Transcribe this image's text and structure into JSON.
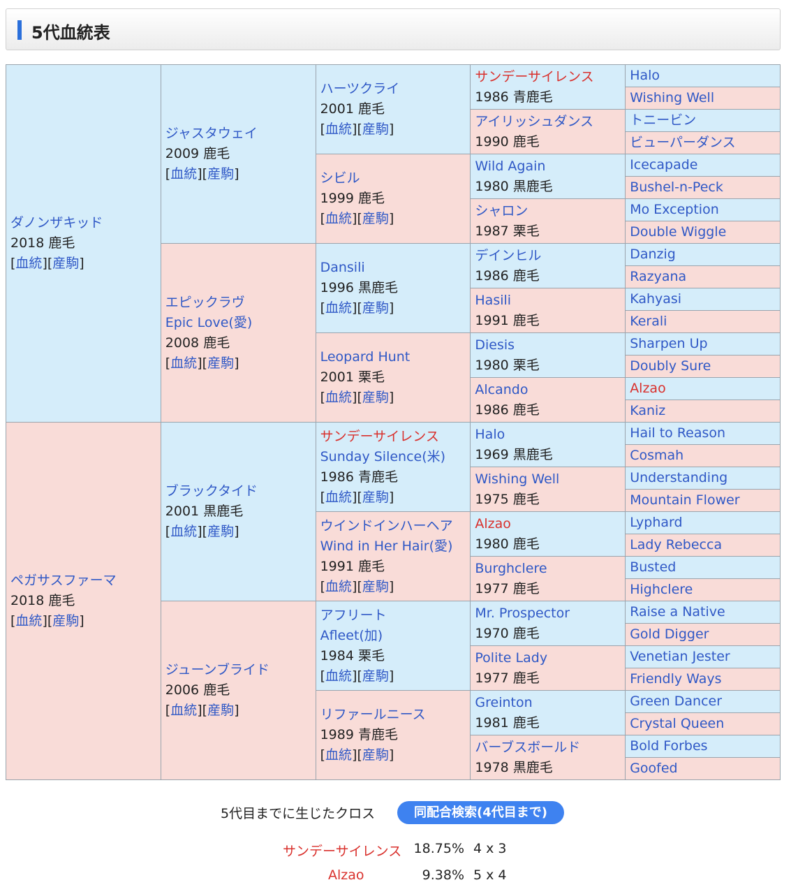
{
  "header": {
    "title": "5代血統表"
  },
  "links": {
    "pedigree": "血統",
    "progeny": "産駒"
  },
  "gen1": [
    {
      "name": "ダノンザキッド",
      "info": "2018 鹿毛"
    },
    {
      "name": "ペガサスファーマ",
      "info": "2018 鹿毛"
    }
  ],
  "gen2": [
    {
      "name": "ジャスタウェイ",
      "info": "2009 鹿毛"
    },
    {
      "name": "エピックラヴ",
      "alt": "Epic Love(愛)",
      "info": "2008 鹿毛"
    },
    {
      "name": "ブラックタイド",
      "info": "2001 黒鹿毛"
    },
    {
      "name": "ジューンブライド",
      "info": "2006 鹿毛"
    }
  ],
  "gen3": [
    {
      "name": "ハーツクライ",
      "info": "2001 鹿毛"
    },
    {
      "name": "シビル",
      "info": "1999 鹿毛"
    },
    {
      "name": "Dansili",
      "info": "1996 黒鹿毛"
    },
    {
      "name": "Leopard Hunt",
      "info": "2001 栗毛"
    },
    {
      "name": "サンデーサイレンス",
      "alt": "Sunday Silence(米)",
      "info": "1986 青鹿毛"
    },
    {
      "name": "ウインドインハーヘア",
      "alt": "Wind in Her Hair(愛)",
      "info": "1991 鹿毛"
    },
    {
      "name": "アフリート",
      "alt": "Afleet(加)",
      "info": "1984 栗毛"
    },
    {
      "name": "リファールニース",
      "info": "1989 青鹿毛"
    }
  ],
  "gen4": [
    {
      "name": "サンデーサイレンス",
      "info": "1986 青鹿毛"
    },
    {
      "name": "アイリッシュダンス",
      "info": "1990 鹿毛"
    },
    {
      "name": "Wild Again",
      "info": "1980 黒鹿毛"
    },
    {
      "name": "シャロン",
      "info": "1987 栗毛"
    },
    {
      "name": "デインヒル",
      "info": "1986 鹿毛"
    },
    {
      "name": "Hasili",
      "info": "1991 鹿毛"
    },
    {
      "name": "Diesis",
      "info": "1980 栗毛"
    },
    {
      "name": "Alcando",
      "info": "1986 鹿毛"
    },
    {
      "name": "Halo",
      "info": "1969 黒鹿毛"
    },
    {
      "name": "Wishing Well",
      "info": "1975 鹿毛"
    },
    {
      "name": "Alzao",
      "info": "1980 鹿毛"
    },
    {
      "name": "Burghclere",
      "info": "1977 鹿毛"
    },
    {
      "name": "Mr. Prospector",
      "info": "1970 鹿毛"
    },
    {
      "name": "Polite Lady",
      "info": "1977 鹿毛"
    },
    {
      "name": "Greinton",
      "info": "1981 鹿毛"
    },
    {
      "name": "バーブスボールド",
      "info": "1978 黒鹿毛"
    }
  ],
  "gen5": [
    "Halo",
    "Wishing Well",
    "トニービン",
    "ビューパーダンス",
    "Icecapade",
    "Bushel-n-Peck",
    "Mo Exception",
    "Double Wiggle",
    "Danzig",
    "Razyana",
    "Kahyasi",
    "Kerali",
    "Sharpen Up",
    "Doubly Sure",
    "Alzao",
    "Kaniz",
    "Hail to Reason",
    "Cosmah",
    "Understanding",
    "Mountain Flower",
    "Lyphard",
    "Lady Rebecca",
    "Busted",
    "Highclere",
    "Raise a Native",
    "Gold Digger",
    "Venetian Jester",
    "Friendly Ways",
    "Green Dancer",
    "Crystal Queen",
    "Bold Forbes",
    "Goofed"
  ],
  "highlight_color": "#d9302c",
  "inbreeding": {
    "title": "5代目までに生じたクロス",
    "search_button": "同配合検索(4代目まで)",
    "crosses": [
      {
        "name": "サンデーサイレンス",
        "percent": "18.75%",
        "gens": "4 x 3"
      },
      {
        "name": "Alzao",
        "percent": "9.38%",
        "gens": "5 x 4"
      }
    ]
  }
}
